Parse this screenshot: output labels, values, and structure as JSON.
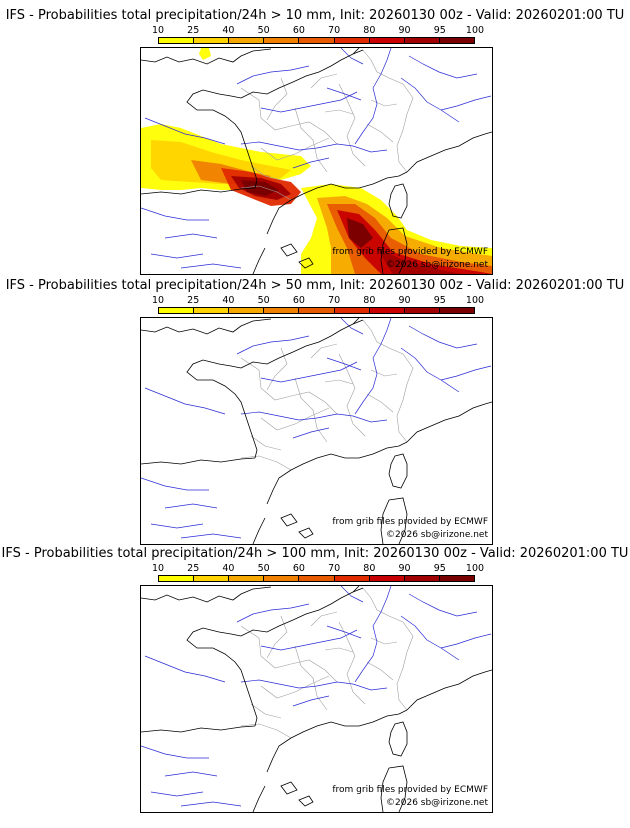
{
  "panels": [
    {
      "title": "IFS - Probabilities total precipitation/24h > 10 mm, Init: 20260130 00z - Valid: 20260201:00 TU",
      "credit_source": "from grib files provided by ECMWF",
      "credit_copyright": "©2026 sb@irizone.net",
      "signal": "high"
    },
    {
      "title": "IFS - Probabilities total precipitation/24h > 50 mm, Init: 20260130 00z - Valid: 20260201:00 TU",
      "credit_source": "from grib files provided by ECMWF",
      "credit_copyright": "©2026 sb@irizone.net",
      "signal": "none"
    },
    {
      "title": "IFS - Probabilities total precipitation/24h > 100 mm, Init: 20260130 00z - Valid: 20260201:00 TU",
      "credit_source": "from grib files provided by ECMWF",
      "credit_copyright": "©2026 sb@irizone.net",
      "signal": "none"
    }
  ],
  "color_scale": {
    "labels": [
      "10",
      "25",
      "40",
      "50",
      "60",
      "70",
      "80",
      "90",
      "95",
      "100"
    ],
    "colors": [
      "#ffff00",
      "#ffd400",
      "#f6a800",
      "#f08000",
      "#e85a00",
      "#e02a00",
      "#c80000",
      "#a00000",
      "#780000",
      "#500000"
    ]
  },
  "map_colors": {
    "coast": "#000000",
    "rivers": "#2b2bd6",
    "borders_internal": "#a0a0a0"
  }
}
